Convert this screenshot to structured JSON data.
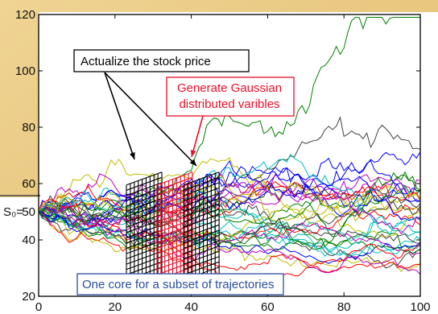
{
  "chart_data": {
    "type": "line",
    "title": "",
    "xlabel": "",
    "ylabel": "",
    "xlim": [
      0,
      100
    ],
    "ylim": [
      20,
      120
    ],
    "x_ticks": [
      0,
      20,
      40,
      60,
      80,
      100
    ],
    "y_ticks": [
      20,
      40,
      60,
      80,
      100,
      120
    ],
    "s0_label": "S₀=",
    "s0_value": 50,
    "n_series": 36,
    "steps": 100,
    "grid": false,
    "annotations": {
      "actualize": "Actualize the stock price",
      "gaussian_line1": "Generate Gaussian",
      "gaussian_line2": "distributed varibles",
      "core": "One core for a subset of trajectories"
    },
    "grids": [
      {
        "role": "actualize",
        "x": 23
      },
      {
        "role": "gaussian",
        "x": 31
      },
      {
        "role": "actualize",
        "x": 38
      }
    ],
    "colors": {
      "actualize": "#000000",
      "gaussian": "#e8102a",
      "core": "#2b4ea0",
      "core_marker": "#3a6fd0",
      "background": "#e8c77e"
    },
    "series_colors": [
      "#0000ff",
      "#008000",
      "#ff0000",
      "#00bfbf",
      "#bf00bf",
      "#bfbf00",
      "#404040"
    ]
  }
}
